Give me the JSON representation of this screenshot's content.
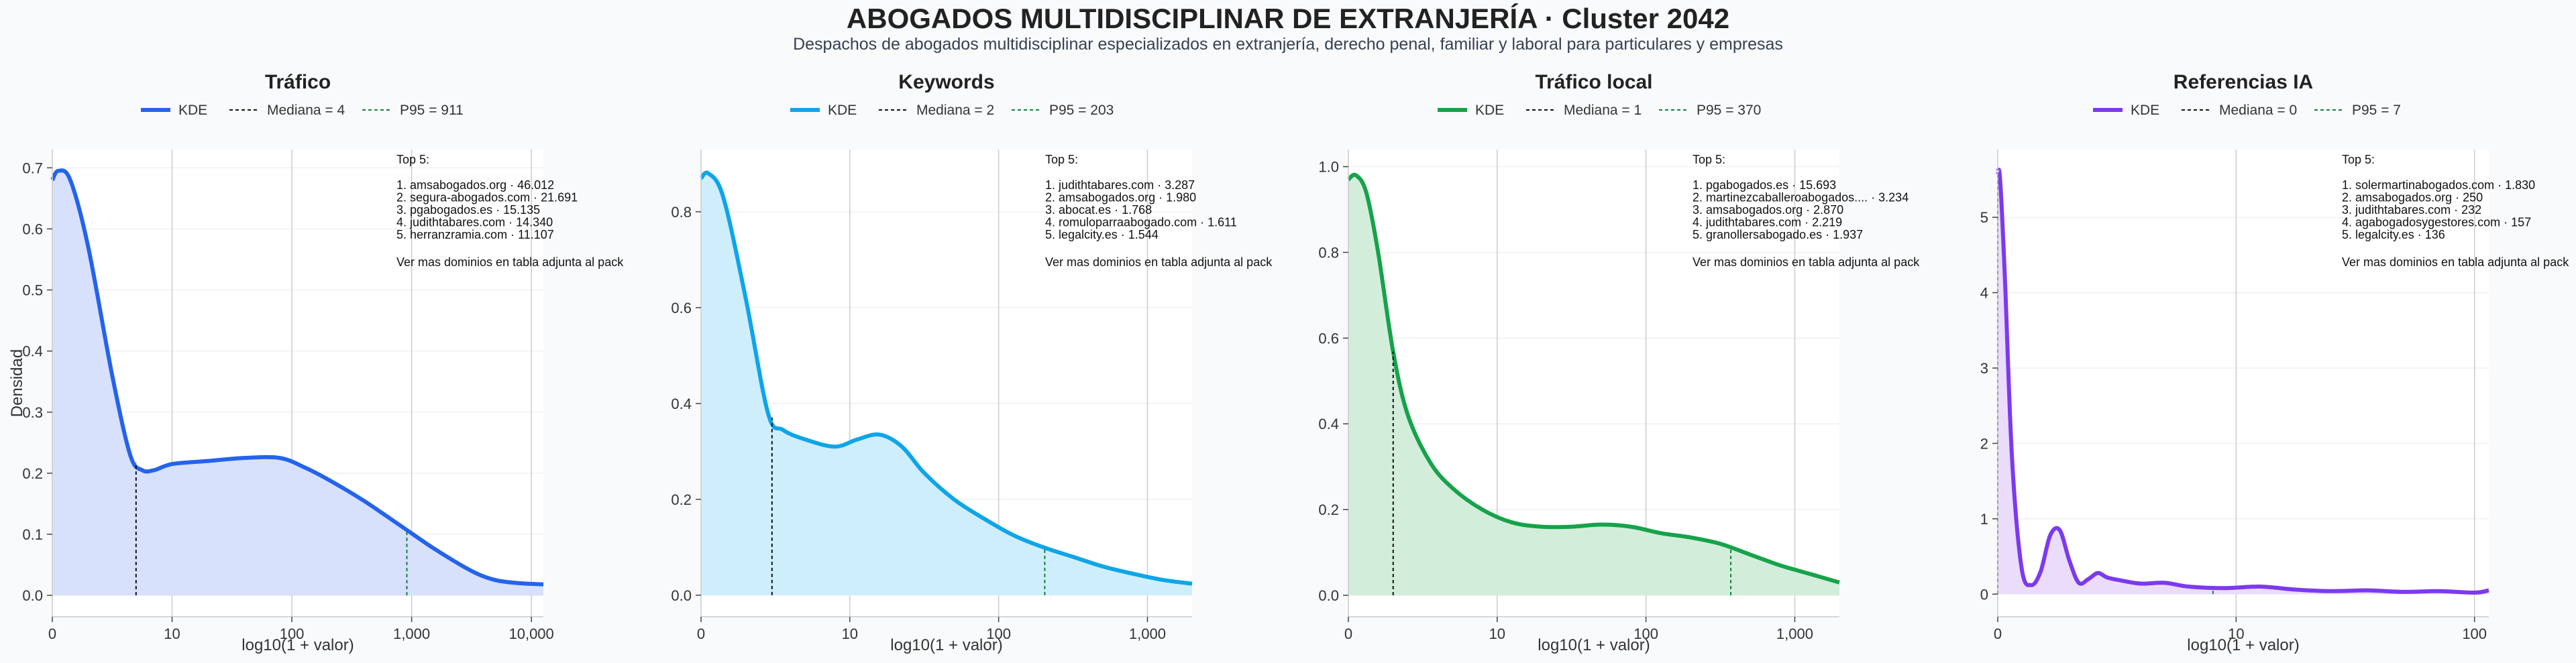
{
  "title": "ABOGADOS MULTIDISCIPLINAR DE EXTRANJERÍA · Cluster 2042",
  "subtitle": "Despachos de abogados multidisciplinar especializados en extranjería, derecho penal, familiar y laboral para particulares y empresas",
  "chart_data": [
    {
      "type": "area",
      "title": "Tráfico",
      "xlabel": "log10(1 + valor)",
      "ylabel": "Densidad",
      "color": "#2563eb",
      "fill": "#d7e1fb",
      "xlim": [
        0,
        4.1
      ],
      "ylim": [
        -0.035,
        0.73
      ],
      "yticks": [
        0.0,
        0.1,
        0.2,
        0.3,
        0.4,
        0.5,
        0.6,
        0.7
      ],
      "ytick_labels": [
        "0.0",
        "0.1",
        "0.2",
        "0.3",
        "0.4",
        "0.5",
        "0.6",
        "0.7"
      ],
      "xticks": [
        0,
        1,
        2,
        3,
        4
      ],
      "xtick_labels": [
        "0",
        "10",
        "100",
        "1,000",
        "10,000"
      ],
      "grid": true,
      "legend": [
        "KDE",
        "Mediana = 4",
        "P95 = 911"
      ],
      "median_x": 0.699,
      "p95_x": 2.96,
      "series": [
        {
          "name": "KDE",
          "x": [
            0,
            0.05,
            0.15,
            0.3,
            0.5,
            0.65,
            0.75,
            0.85,
            1.0,
            1.3,
            1.6,
            1.9,
            2.1,
            2.3,
            2.6,
            2.9,
            3.2,
            3.5,
            3.7,
            3.9,
            4.1
          ],
          "y": [
            0.68,
            0.695,
            0.68,
            0.57,
            0.36,
            0.23,
            0.205,
            0.205,
            0.215,
            0.22,
            0.225,
            0.225,
            0.21,
            0.19,
            0.155,
            0.115,
            0.075,
            0.04,
            0.025,
            0.02,
            0.018
          ]
        }
      ],
      "top5_title": "Top 5:",
      "top5": [
        "1. amsabogados.org · 46.012",
        "2. segura-abogados.com · 21.691",
        "3. pgabogados.es · 15.135",
        "4. judithtabares.com · 14.340",
        "5. herranzramia.com · 11.107"
      ],
      "top5_footer": "Ver mas dominios en tabla adjunta al pack"
    },
    {
      "type": "area",
      "title": "Keywords",
      "xlabel": "log10(1 + valor)",
      "ylabel": "",
      "color": "#0ea5e9",
      "fill": "#cfeefb",
      "xlim": [
        0,
        3.3
      ],
      "ylim": [
        -0.045,
        0.93
      ],
      "yticks": [
        0.0,
        0.2,
        0.4,
        0.6,
        0.8
      ],
      "ytick_labels": [
        "0.0",
        "0.2",
        "0.4",
        "0.6",
        "0.8"
      ],
      "xticks": [
        0,
        1,
        2,
        3
      ],
      "xtick_labels": [
        "0",
        "10",
        "100",
        "1,000"
      ],
      "grid": true,
      "legend": [
        "KDE",
        "Mediana = 2",
        "P95 = 203"
      ],
      "median_x": 0.477,
      "p95_x": 2.31,
      "series": [
        {
          "name": "KDE",
          "x": [
            0,
            0.05,
            0.15,
            0.3,
            0.45,
            0.55,
            0.7,
            0.9,
            1.05,
            1.2,
            1.35,
            1.5,
            1.7,
            1.9,
            2.1,
            2.3,
            2.5,
            2.7,
            2.9,
            3.1,
            3.3
          ],
          "y": [
            0.87,
            0.88,
            0.83,
            0.62,
            0.38,
            0.345,
            0.325,
            0.31,
            0.325,
            0.335,
            0.31,
            0.255,
            0.2,
            0.16,
            0.125,
            0.1,
            0.08,
            0.06,
            0.045,
            0.032,
            0.024
          ]
        }
      ],
      "top5_title": "Top 5:",
      "top5": [
        "1. judithtabares.com · 3.287",
        "2. amsabogados.org · 1.980",
        "3. abocat.es · 1.768",
        "4. romuloparraabogado.com · 1.611",
        "5. legalcity.es · 1.544"
      ],
      "top5_footer": "Ver mas dominios en tabla adjunta al pack"
    },
    {
      "type": "area",
      "title": "Tráfico local",
      "xlabel": "log10(1 + valor)",
      "ylabel": "",
      "color": "#16a34a",
      "fill": "#d2eedb",
      "xlim": [
        0,
        3.3
      ],
      "ylim": [
        -0.05,
        1.04
      ],
      "yticks": [
        0.0,
        0.2,
        0.4,
        0.6,
        0.8,
        1.0
      ],
      "ytick_labels": [
        "0.0",
        "0.2",
        "0.4",
        "0.6",
        "0.8",
        "1.0"
      ],
      "xticks": [
        0,
        1,
        2,
        3
      ],
      "xtick_labels": [
        "0",
        "10",
        "100",
        "1,000"
      ],
      "grid": true,
      "legend": [
        "KDE",
        "Mediana = 1",
        "P95 = 370"
      ],
      "median_x": 0.301,
      "p95_x": 2.57,
      "series": [
        {
          "name": "KDE",
          "x": [
            0,
            0.05,
            0.12,
            0.2,
            0.3,
            0.4,
            0.55,
            0.7,
            0.9,
            1.1,
            1.3,
            1.5,
            1.7,
            1.9,
            2.1,
            2.3,
            2.5,
            2.7,
            2.9,
            3.1,
            3.3
          ],
          "y": [
            0.97,
            0.98,
            0.94,
            0.8,
            0.57,
            0.42,
            0.31,
            0.25,
            0.2,
            0.17,
            0.16,
            0.16,
            0.165,
            0.16,
            0.145,
            0.135,
            0.12,
            0.095,
            0.07,
            0.05,
            0.03
          ]
        }
      ],
      "top5_title": "Top 5:",
      "top5": [
        "1. pgabogados.es · 15.693",
        "2. martinezcaballeroabogados.... · 3.234",
        "3. amsabogados.org · 2.870",
        "4. judithtabares.com · 2.219",
        "5. granollersabogado.es · 1.937"
      ],
      "top5_footer": "Ver mas dominios en tabla adjunta al pack"
    },
    {
      "type": "area",
      "title": "Referencias IA",
      "xlabel": "log10(1 + valor)",
      "ylabel": "",
      "color": "#7c3aed",
      "fill": "#eadcfa",
      "xlim": [
        0,
        2.06
      ],
      "ylim": [
        -0.3,
        5.9
      ],
      "yticks": [
        0,
        1,
        2,
        3,
        4,
        5
      ],
      "ytick_labels": [
        "0",
        "1",
        "2",
        "3",
        "4",
        "5"
      ],
      "xticks": [
        0,
        1,
        2
      ],
      "xtick_labels": [
        "0",
        "10",
        "100"
      ],
      "grid": true,
      "legend": [
        "KDE",
        "Mediana = 0",
        "P95 = 7"
      ],
      "median_x": 0.0,
      "p95_x": 0.903,
      "series": [
        {
          "name": "KDE",
          "x": [
            0,
            0.01,
            0.03,
            0.06,
            0.1,
            0.14,
            0.18,
            0.22,
            0.26,
            0.3,
            0.34,
            0.38,
            0.42,
            0.46,
            0.52,
            0.6,
            0.7,
            0.8,
            0.95,
            1.1,
            1.25,
            1.4,
            1.55,
            1.7,
            1.85,
            2.0,
            2.06
          ],
          "y": [
            5.6,
            5.5,
            4.2,
            1.8,
            0.35,
            0.12,
            0.3,
            0.78,
            0.85,
            0.45,
            0.15,
            0.2,
            0.28,
            0.22,
            0.18,
            0.14,
            0.15,
            0.1,
            0.08,
            0.1,
            0.06,
            0.04,
            0.05,
            0.03,
            0.04,
            0.02,
            0.05
          ]
        }
      ],
      "top5_title": "Top 5:",
      "top5": [
        "1. solermartinabogados.com · 1.830",
        "2. amsabogados.org · 250",
        "3. judithtabares.com · 232",
        "4. agabogadosygestores.com · 157",
        "5. legalcity.es · 136"
      ],
      "top5_footer": "Ver mas dominios en tabla adjunta al pack"
    }
  ]
}
